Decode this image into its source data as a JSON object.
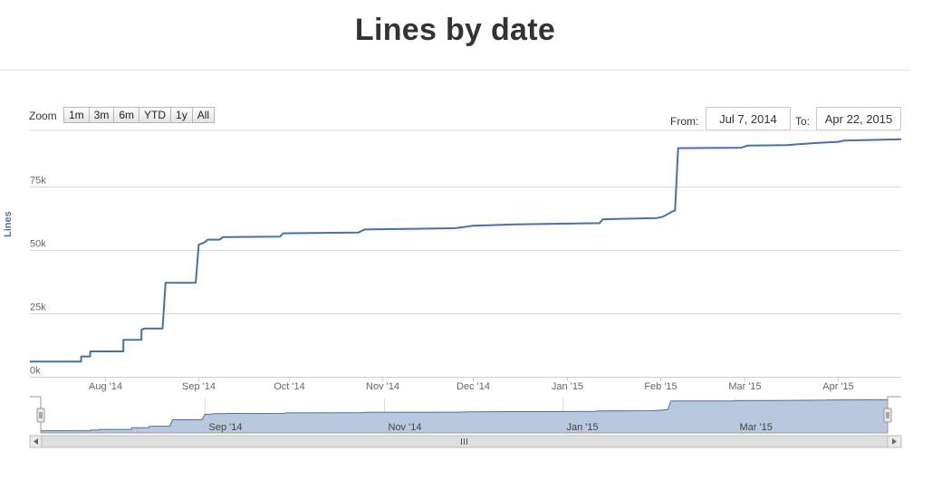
{
  "page": {
    "title": "Lines by date"
  },
  "range_selector": {
    "zoom_label": "Zoom",
    "buttons": [
      "1m",
      "3m",
      "6m",
      "YTD",
      "1y",
      "All"
    ],
    "from_label": "From:",
    "to_label": "To:",
    "from_value": "Jul 7, 2014",
    "to_value": "Apr 22, 2015"
  },
  "colors": {
    "line": "#4572a7",
    "navigator_fill": "#b4c6dd",
    "grid": "#d8d8d8"
  },
  "chart_data": {
    "type": "line",
    "title": "Lines by date",
    "ylabel": "Lines",
    "ylim": [
      0,
      97000
    ],
    "yticks": [
      0,
      25000,
      50000,
      75000
    ],
    "ytick_labels": [
      "0k",
      "25k",
      "50k",
      "75k"
    ],
    "xlim": [
      "2014-07-07",
      "2015-04-22"
    ],
    "xticks": [
      {
        "date": "2014-08-01",
        "label": "Aug '14"
      },
      {
        "date": "2014-09-01",
        "label": "Sep '14"
      },
      {
        "date": "2014-10-01",
        "label": "Oct '14"
      },
      {
        "date": "2014-11-01",
        "label": "Nov '14"
      },
      {
        "date": "2014-12-01",
        "label": "Dec '14"
      },
      {
        "date": "2015-01-01",
        "label": "Jan '15"
      },
      {
        "date": "2015-02-01",
        "label": "Feb '15"
      },
      {
        "date": "2015-03-01",
        "label": "Mar '15"
      },
      {
        "date": "2015-04-01",
        "label": "Apr '15"
      }
    ],
    "navigator_ticks": [
      {
        "date": "2014-09-01",
        "label": "Sep '14"
      },
      {
        "date": "2014-11-01",
        "label": "Nov '14"
      },
      {
        "date": "2015-01-01",
        "label": "Jan '15"
      },
      {
        "date": "2015-03-01",
        "label": "Mar '15"
      }
    ],
    "grid": true,
    "series": [
      {
        "values": [
          {
            "x": "2014-07-07",
            "y": 6000
          },
          {
            "x": "2014-07-24",
            "y": 6000
          },
          {
            "x": "2014-07-24",
            "y": 8000
          },
          {
            "x": "2014-07-27",
            "y": 8000
          },
          {
            "x": "2014-07-27",
            "y": 10000
          },
          {
            "x": "2014-08-07",
            "y": 10000
          },
          {
            "x": "2014-08-07",
            "y": 14500
          },
          {
            "x": "2014-08-13",
            "y": 14500
          },
          {
            "x": "2014-08-13",
            "y": 18500
          },
          {
            "x": "2014-08-14",
            "y": 19000
          },
          {
            "x": "2014-08-20",
            "y": 19000
          },
          {
            "x": "2014-08-21",
            "y": 37000
          },
          {
            "x": "2014-08-31",
            "y": 37000
          },
          {
            "x": "2014-09-01",
            "y": 52000
          },
          {
            "x": "2014-09-03",
            "y": 53000
          },
          {
            "x": "2014-09-04",
            "y": 54000
          },
          {
            "x": "2014-09-08",
            "y": 54000
          },
          {
            "x": "2014-09-09",
            "y": 55000
          },
          {
            "x": "2014-09-28",
            "y": 55200
          },
          {
            "x": "2014-09-29",
            "y": 56500
          },
          {
            "x": "2014-10-24",
            "y": 56800
          },
          {
            "x": "2014-10-26",
            "y": 58000
          },
          {
            "x": "2014-11-25",
            "y": 58500
          },
          {
            "x": "2014-12-01",
            "y": 59500
          },
          {
            "x": "2014-12-15",
            "y": 60000
          },
          {
            "x": "2015-01-12",
            "y": 60500
          },
          {
            "x": "2015-01-13",
            "y": 62000
          },
          {
            "x": "2015-01-31",
            "y": 62500
          },
          {
            "x": "2015-02-02",
            "y": 63000
          },
          {
            "x": "2015-02-05",
            "y": 65000
          },
          {
            "x": "2015-02-06",
            "y": 65500
          },
          {
            "x": "2015-02-07",
            "y": 90000
          },
          {
            "x": "2015-02-28",
            "y": 90200
          },
          {
            "x": "2015-03-02",
            "y": 91000
          },
          {
            "x": "2015-03-15",
            "y": 91200
          },
          {
            "x": "2015-03-24",
            "y": 92000
          },
          {
            "x": "2015-04-01",
            "y": 92500
          },
          {
            "x": "2015-04-03",
            "y": 93000
          },
          {
            "x": "2015-04-22",
            "y": 93500
          }
        ]
      }
    ]
  }
}
